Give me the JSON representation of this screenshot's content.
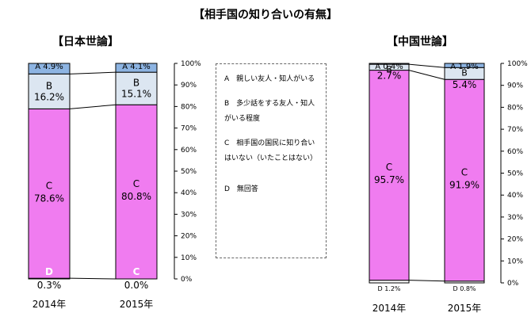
{
  "title": "【相手国の知り合いの有無】",
  "legend": [
    {
      "key": "A",
      "text": "A　親しい友人・知人がいる"
    },
    {
      "key": "B",
      "text": "B　多少話をする友人・知人がいる程度"
    },
    {
      "key": "C",
      "text": "C　相手国の国民に知り合いはいない（いたことはない）"
    },
    {
      "key": "D",
      "text": "D　無回答"
    }
  ],
  "colors": {
    "A": "#8DB4E2",
    "B": "#DCE6F1",
    "C": "#F07CF0",
    "D": "#FFFFFF"
  },
  "chart_data": [
    {
      "type": "bar",
      "stacked": true,
      "title": "【日本世論】",
      "categories": [
        "2014年",
        "2015年"
      ],
      "series": [
        {
          "name": "D",
          "values": [
            0.3,
            0.0
          ]
        },
        {
          "name": "C",
          "values": [
            78.6,
            80.8
          ]
        },
        {
          "name": "B",
          "values": [
            16.2,
            15.1
          ]
        },
        {
          "name": "A",
          "values": [
            4.9,
            4.1
          ]
        }
      ],
      "value_labels": {
        "A": [
          "A 4.9%",
          "A 4.1%"
        ],
        "B": [
          "16.2%",
          "15.1%"
        ],
        "C": [
          "78.6%",
          "80.8%"
        ],
        "D": [
          "0.3%",
          "0.0%"
        ]
      },
      "ylim": [
        0,
        100
      ],
      "yticks": [
        "0%",
        "10%",
        "20%",
        "30%",
        "40%",
        "50%",
        "60%",
        "70%",
        "80%",
        "90%",
        "100%"
      ],
      "grid": false
    },
    {
      "type": "bar",
      "stacked": true,
      "title": "【中国世論】",
      "categories": [
        "2014年",
        "2015年"
      ],
      "series": [
        {
          "name": "D",
          "values": [
            1.2,
            0.8
          ]
        },
        {
          "name": "C",
          "values": [
            95.7,
            91.9
          ]
        },
        {
          "name": "B",
          "values": [
            2.7,
            5.4
          ]
        },
        {
          "name": "A",
          "values": [
            0.4,
            1.9
          ]
        }
      ],
      "value_labels": {
        "A": [
          "A 0.4%",
          "A 1.9%"
        ],
        "B": [
          "2.7%",
          "5.4%"
        ],
        "C": [
          "95.7%",
          "91.9%"
        ],
        "D": [
          "D 1.2%",
          "D 0.8%"
        ]
      },
      "ylim": [
        0,
        100
      ],
      "yticks": [
        "0%",
        "10%",
        "20%",
        "30%",
        "40%",
        "50%",
        "60%",
        "70%",
        "80%",
        "90%",
        "100%"
      ],
      "grid": false
    }
  ]
}
